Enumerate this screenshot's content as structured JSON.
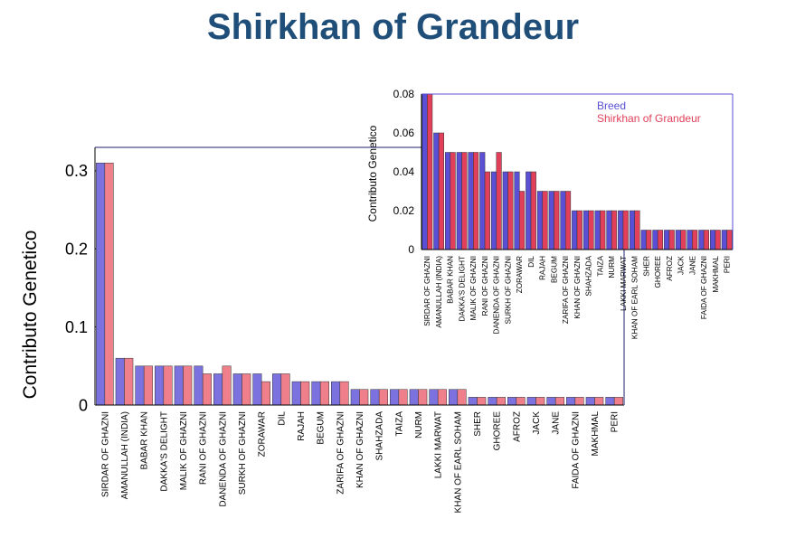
{
  "page": {
    "title": "Shirkhan of Grandeur"
  },
  "chart_data": [
    {
      "type": "bar",
      "title": "",
      "xlabel": "",
      "ylabel": "Contributo Genetico",
      "ylim": [
        0,
        0.33
      ],
      "yticks": [
        0,
        0.1,
        0.2,
        0.3
      ],
      "ytick_labels": [
        "0",
        "0.1",
        "0.2",
        "0.3"
      ],
      "grid": false,
      "categories": [
        "SIRDAR OF GHAZNI",
        "AMANULLAH (INDIA)",
        "BABAR KHAN",
        "DAKKA'S DELIGHT",
        "MALIK OF GHAZNI",
        "RANI OF GHAZNI",
        "DANENDA OF GHAZNI",
        "SURKH OF GHAZNI",
        "ZORAWAR",
        "DIL",
        "RAJAH",
        "BEGUM",
        "ZARIFA OF GHAZNI",
        "KHAN OF GHAZNI",
        "SHAHZADA",
        "TAIZA",
        "NURM",
        "LAKKI MARWAT",
        "KHAN OF EARL SOHAM",
        "SHER",
        "GHOREE",
        "AFROZ",
        "JACK",
        "JANE",
        "FAIDA OF GHAZNI",
        "MAKHMAL",
        "PERI"
      ],
      "series": [
        {
          "values": [
            0.31,
            0.06,
            0.05,
            0.05,
            0.05,
            0.05,
            0.04,
            0.04,
            0.04,
            0.04,
            0.03,
            0.03,
            0.03,
            0.02,
            0.02,
            0.02,
            0.02,
            0.02,
            0.02,
            0.01,
            0.01,
            0.01,
            0.01,
            0.01,
            0.01,
            0.01,
            0.01
          ]
        },
        {
          "values": [
            0.31,
            0.06,
            0.05,
            0.05,
            0.05,
            0.04,
            0.05,
            0.04,
            0.03,
            0.04,
            0.03,
            0.03,
            0.03,
            0.02,
            0.02,
            0.02,
            0.02,
            0.02,
            0.02,
            0.01,
            0.01,
            0.01,
            0.01,
            0.01,
            0.01,
            0.01,
            0.01
          ]
        }
      ],
      "colors": [
        "#7b72e0",
        "#ef7f8a"
      ]
    },
    {
      "type": "bar",
      "title": "",
      "xlabel": "",
      "ylabel": "Contributo Genetico",
      "ylim": [
        0,
        0.08
      ],
      "yticks": [
        0,
        0.02,
        0.04,
        0.06,
        0.08
      ],
      "ytick_labels": [
        "0",
        "0.02",
        "0.04",
        "0.06",
        "0.08"
      ],
      "grid": false,
      "legend_position": "top-right",
      "categories": [
        "SIRDAR OF GHAZNI",
        "AMANULLAH (INDIA)",
        "BABAR KHAN",
        "DAKKA'S DELIGHT",
        "MALIK OF GHAZNI",
        "RANI OF GHAZNI",
        "DANENDA OF GHAZNI",
        "SURKH OF GHAZNI",
        "ZORAWAR",
        "DIL",
        "RAJAH",
        "BEGUM",
        "ZARIFA OF GHAZNI",
        "KHAN OF GHAZNI",
        "SHAHZADA",
        "TAIZA",
        "NURM",
        "LAKKI MARWAT",
        "KHAN OF EARL SOHAM",
        "SHER",
        "GHOREE",
        "AFROZ",
        "JACK",
        "JANE",
        "FAIDA OF GHAZNI",
        "MAKHMAL",
        "PERI"
      ],
      "series": [
        {
          "name": "Breed",
          "values": [
            0.08,
            0.06,
            0.05,
            0.05,
            0.05,
            0.05,
            0.04,
            0.04,
            0.04,
            0.04,
            0.03,
            0.03,
            0.03,
            0.02,
            0.02,
            0.02,
            0.02,
            0.02,
            0.02,
            0.01,
            0.01,
            0.01,
            0.01,
            0.01,
            0.01,
            0.01,
            0.01
          ]
        },
        {
          "name": "Shirkhan of Grandeur",
          "values": [
            0.08,
            0.06,
            0.05,
            0.05,
            0.05,
            0.04,
            0.05,
            0.04,
            0.03,
            0.04,
            0.03,
            0.03,
            0.03,
            0.02,
            0.02,
            0.02,
            0.02,
            0.02,
            0.02,
            0.01,
            0.01,
            0.01,
            0.01,
            0.01,
            0.01,
            0.01,
            0.01
          ]
        }
      ],
      "colors": [
        "#5b4fd6",
        "#e2405a"
      ]
    }
  ]
}
